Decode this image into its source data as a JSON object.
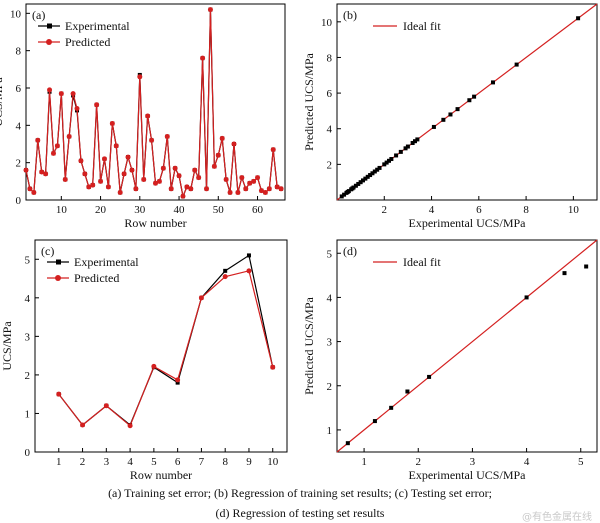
{
  "chart_data": [
    {
      "id": "a",
      "panel_label": "(a)",
      "type": "line",
      "xlabel": "Row number",
      "ylabel": "UCS/MPa",
      "xlim": [
        1,
        67
      ],
      "ylim": [
        0,
        10.5
      ],
      "xticks": [
        10,
        20,
        30,
        40,
        50,
        60
      ],
      "yticks": [
        0,
        2,
        4,
        6,
        8,
        10
      ],
      "x": [
        1,
        2,
        3,
        4,
        5,
        6,
        7,
        8,
        9,
        10,
        11,
        12,
        13,
        14,
        15,
        16,
        17,
        18,
        19,
        20,
        21,
        22,
        23,
        24,
        25,
        26,
        27,
        28,
        29,
        30,
        31,
        32,
        33,
        34,
        35,
        36,
        37,
        38,
        39,
        40,
        41,
        42,
        43,
        44,
        45,
        46,
        47,
        48,
        49,
        50,
        51,
        52,
        53,
        54,
        55,
        56,
        57,
        58,
        59,
        60,
        61,
        62,
        63,
        64,
        65,
        66
      ],
      "series": [
        {
          "name": "Experimental",
          "color": "#000000",
          "marker": "square",
          "values": [
            1.6,
            0.6,
            0.4,
            3.2,
            1.5,
            1.4,
            5.8,
            2.5,
            2.9,
            5.7,
            1.1,
            3.4,
            5.6,
            4.8,
            2.1,
            1.4,
            0.7,
            0.8,
            5.1,
            1.0,
            2.2,
            0.7,
            4.1,
            2.9,
            0.4,
            1.4,
            2.3,
            1.6,
            0.6,
            6.7,
            1.1,
            4.5,
            3.2,
            0.9,
            1.0,
            1.7,
            3.4,
            0.6,
            1.7,
            1.3,
            0.2,
            0.7,
            0.6,
            1.6,
            1.2,
            7.6,
            0.6,
            10.2,
            1.8,
            2.4,
            3.3,
            1.1,
            0.4,
            3.0,
            0.4,
            1.2,
            0.6,
            0.9,
            1.0,
            1.2,
            0.5,
            0.4,
            0.6,
            2.7,
            0.7,
            0.6
          ]
        },
        {
          "name": "Predicted",
          "color": "#d42020",
          "marker": "circle",
          "values": [
            1.6,
            0.6,
            0.4,
            3.2,
            1.5,
            1.4,
            5.9,
            2.5,
            2.9,
            5.7,
            1.1,
            3.4,
            5.7,
            4.9,
            2.1,
            1.4,
            0.7,
            0.8,
            5.1,
            1.0,
            2.2,
            0.7,
            4.1,
            2.9,
            0.4,
            1.4,
            2.3,
            1.6,
            0.6,
            6.6,
            1.1,
            4.5,
            3.2,
            0.9,
            1.0,
            1.7,
            3.4,
            0.6,
            1.7,
            1.3,
            0.2,
            0.7,
            0.6,
            1.6,
            1.2,
            7.6,
            0.6,
            10.2,
            1.8,
            2.4,
            3.3,
            1.1,
            0.4,
            3.0,
            0.4,
            1.2,
            0.6,
            0.9,
            1.0,
            1.2,
            0.5,
            0.4,
            0.6,
            2.7,
            0.7,
            0.6
          ]
        }
      ],
      "legend_position": "top-left"
    },
    {
      "id": "b",
      "panel_label": "(b)",
      "type": "scatter",
      "xlabel": "Experimental UCS/MPa",
      "ylabel": "Predicted UCS/MPa",
      "xlim": [
        0,
        11
      ],
      "ylim": [
        0,
        11
      ],
      "xticks": [
        2,
        4,
        6,
        8,
        10
      ],
      "yticks": [
        2,
        4,
        6,
        8,
        10
      ],
      "fit_line": {
        "name": "Ideal fit",
        "color": "#d42020",
        "from": [
          0,
          0
        ],
        "to": [
          11,
          11
        ]
      },
      "points": {
        "color": "#000000",
        "marker": "square",
        "x": [
          0.2,
          0.3,
          0.4,
          0.45,
          0.5,
          0.6,
          0.65,
          0.7,
          0.8,
          0.9,
          1.0,
          1.1,
          1.2,
          1.3,
          1.4,
          1.5,
          1.6,
          1.7,
          1.8,
          2.0,
          2.1,
          2.2,
          2.3,
          2.5,
          2.7,
          2.9,
          3.0,
          3.2,
          3.3,
          3.4,
          4.1,
          4.5,
          4.8,
          5.1,
          5.6,
          5.8,
          6.6,
          7.6,
          10.2
        ],
        "y": [
          0.2,
          0.3,
          0.4,
          0.45,
          0.5,
          0.6,
          0.65,
          0.7,
          0.8,
          0.9,
          1.0,
          1.1,
          1.2,
          1.3,
          1.4,
          1.5,
          1.6,
          1.7,
          1.8,
          2.0,
          2.1,
          2.2,
          2.3,
          2.5,
          2.7,
          2.9,
          3.0,
          3.2,
          3.3,
          3.4,
          4.1,
          4.5,
          4.8,
          5.1,
          5.6,
          5.8,
          6.6,
          7.6,
          10.2
        ]
      },
      "legend_position": "top-left"
    },
    {
      "id": "c",
      "panel_label": "(c)",
      "type": "line",
      "xlabel": "Row number",
      "ylabel": "UCS/MPa",
      "xlim": [
        0,
        10.6
      ],
      "ylim": [
        0,
        5.5
      ],
      "xticks": [
        1,
        2,
        3,
        4,
        5,
        6,
        7,
        8,
        9,
        10
      ],
      "yticks": [
        0,
        1,
        2,
        3,
        4,
        5
      ],
      "x": [
        1,
        2,
        3,
        4,
        5,
        6,
        7,
        8,
        9,
        10
      ],
      "series": [
        {
          "name": "Experimental",
          "color": "#000000",
          "marker": "square",
          "values": [
            1.5,
            0.7,
            1.2,
            0.7,
            2.2,
            1.8,
            4.0,
            4.7,
            5.1,
            2.2
          ]
        },
        {
          "name": "Predicted",
          "color": "#d42020",
          "marker": "circle",
          "values": [
            1.5,
            0.7,
            1.2,
            0.68,
            2.22,
            1.87,
            4.0,
            4.55,
            4.7,
            2.2
          ]
        }
      ],
      "legend_position": "top-left"
    },
    {
      "id": "d",
      "panel_label": "(d)",
      "type": "scatter",
      "xlabel": "Experimental UCS/MPa",
      "ylabel": "Predicted UCS/MPa",
      "xlim": [
        0.5,
        5.3
      ],
      "ylim": [
        0.5,
        5.3
      ],
      "xticks": [
        1,
        2,
        3,
        4,
        5
      ],
      "yticks": [
        1,
        2,
        3,
        4,
        5
      ],
      "fit_line": {
        "name": "Ideal fit",
        "color": "#d42020",
        "from": [
          0.5,
          0.5
        ],
        "to": [
          5.3,
          5.3
        ]
      },
      "points": {
        "color": "#000000",
        "marker": "square",
        "x": [
          0.7,
          1.2,
          1.5,
          1.8,
          2.2,
          4.0,
          4.7,
          5.1
        ],
        "y": [
          0.7,
          1.2,
          1.5,
          1.87,
          2.2,
          4.0,
          4.55,
          4.7
        ]
      },
      "legend_position": "top-left"
    }
  ],
  "caption_line1": "(a) Training set error; (b) Regression of training set results; (c) Testing set error;",
  "caption_line2": "(d) Regression of testing set results",
  "watermark": "@有色金属在线"
}
